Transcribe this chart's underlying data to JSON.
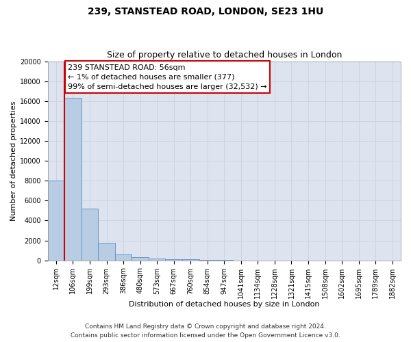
{
  "title": "239, STANSTEAD ROAD, LONDON, SE23 1HU",
  "subtitle": "Size of property relative to detached houses in London",
  "xlabel": "Distribution of detached houses by size in London",
  "ylabel": "Number of detached properties",
  "categories": [
    "12sqm",
    "106sqm",
    "199sqm",
    "293sqm",
    "386sqm",
    "480sqm",
    "573sqm",
    "667sqm",
    "760sqm",
    "854sqm",
    "947sqm",
    "1041sqm",
    "1134sqm",
    "1228sqm",
    "1321sqm",
    "1415sqm",
    "1508sqm",
    "1602sqm",
    "1695sqm",
    "1789sqm",
    "1882sqm"
  ],
  "values": [
    8000,
    16300,
    5200,
    1750,
    580,
    330,
    180,
    130,
    80,
    40,
    10,
    0,
    0,
    0,
    0,
    0,
    0,
    0,
    0,
    0,
    0
  ],
  "bar_color": "#b8cce4",
  "bar_edge_color": "#5a8fc0",
  "highlight_color": "#cc0000",
  "annotation_line1": "239 STANSTEAD ROAD: 56sqm",
  "annotation_line2": "← 1% of detached houses are smaller (377)",
  "annotation_line3": "99% of semi-detached houses are larger (32,532) →",
  "annotation_box_color": "#ffffff",
  "annotation_border_color": "#cc0000",
  "ylim": [
    0,
    20000
  ],
  "yticks": [
    0,
    2000,
    4000,
    6000,
    8000,
    10000,
    12000,
    14000,
    16000,
    18000,
    20000
  ],
  "grid_color": "#ccd4e0",
  "background_color": "#dde4f0",
  "footer_line1": "Contains HM Land Registry data © Crown copyright and database right 2024.",
  "footer_line2": "Contains public sector information licensed under the Open Government Licence v3.0.",
  "title_fontsize": 10,
  "subtitle_fontsize": 9,
  "axis_label_fontsize": 8,
  "tick_fontsize": 7,
  "annotation_fontsize": 8,
  "footer_fontsize": 6.5
}
